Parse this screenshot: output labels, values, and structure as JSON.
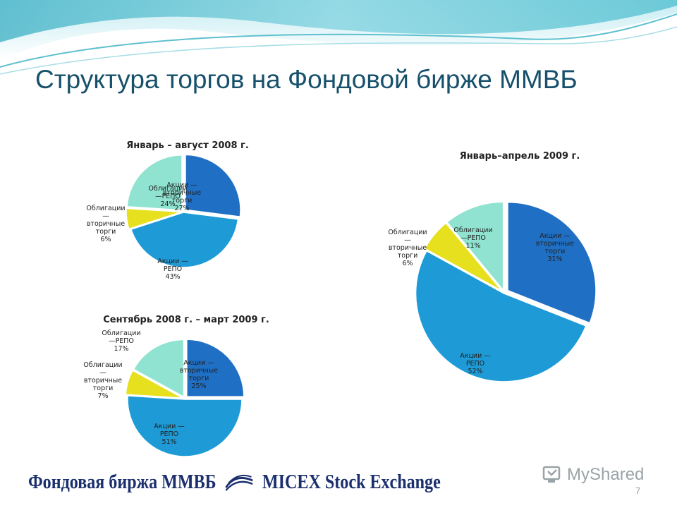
{
  "slide": {
    "title": "Структура торгов на Фондовой бирже ММВБ",
    "footer_brand_ru": "Фондовая биржа ММВБ",
    "footer_brand_en": "MICEX Stock Exchange",
    "watermark": "MyShared",
    "slide_number": "7"
  },
  "colors": {
    "title": "#17506b",
    "stocks_secondary": "#1f6fc4",
    "stocks_repo": "#1e9bd6",
    "bonds_secondary": "#e6e01f",
    "bonds_repo": "#8fe3d0"
  },
  "icons": [
    "micex-logo-icon",
    "myshared-icon"
  ],
  "chart_data": [
    {
      "type": "pie",
      "title": "Январь – август 2008 г.",
      "unit": "%",
      "slices": [
        {
          "name": "Акции — вторичные торги",
          "lines": [
            "Акции —",
            "вторичные",
            "торги",
            "27%"
          ],
          "value": 27,
          "color": "#1f6fc4"
        },
        {
          "name": "Акции — РЕПО",
          "lines": [
            "Акции —",
            "РЕПО",
            "43%"
          ],
          "value": 43,
          "color": "#1e9bd6"
        },
        {
          "name": "Облигации — вторичные торги",
          "lines": [
            "Облигации",
            "—",
            "вторичные",
            "торги",
            "6%"
          ],
          "value": 6,
          "color": "#e6e01f"
        },
        {
          "name": "Облигации — РЕПО",
          "lines": [
            "Облигации",
            "—РЕПО",
            "24%"
          ],
          "value": 24,
          "color": "#8fe3d0"
        }
      ]
    },
    {
      "type": "pie",
      "title": "Сентябрь 2008 г. – март 2009 г.",
      "unit": "%",
      "slices": [
        {
          "name": "Акции — вторичные торги",
          "lines": [
            "Акции —",
            "вторичные",
            "торги",
            "25%"
          ],
          "value": 25,
          "color": "#1f6fc4"
        },
        {
          "name": "Акции — РЕПО",
          "lines": [
            "Акции —",
            "РЕПО",
            "51%"
          ],
          "value": 51,
          "color": "#1e9bd6"
        },
        {
          "name": "Облигации — вторичные торги",
          "lines": [
            "Облигации",
            "—",
            "вторичные",
            "торги",
            "7%"
          ],
          "value": 7,
          "color": "#e6e01f"
        },
        {
          "name": "Облигации — РЕПО",
          "lines": [
            "Облигации",
            "—РЕПО",
            "17%"
          ],
          "value": 17,
          "color": "#8fe3d0"
        }
      ]
    },
    {
      "type": "pie",
      "title": "Январь–апрель 2009 г.",
      "unit": "%",
      "slices": [
        {
          "name": "Акции — вторичные торги",
          "lines": [
            "Акции —",
            "вторичные",
            "торги",
            "31%"
          ],
          "value": 31,
          "color": "#1f6fc4"
        },
        {
          "name": "Акции — РЕПО",
          "lines": [
            "Акции —",
            "РЕПО",
            "52%"
          ],
          "value": 52,
          "color": "#1e9bd6"
        },
        {
          "name": "Облигации — вторичные торги",
          "lines": [
            "Облигации",
            "—",
            "вторичные",
            "торги",
            "6%"
          ],
          "value": 6,
          "color": "#e6e01f"
        },
        {
          "name": "Облигации — РЕПО",
          "lines": [
            "Облигации",
            "—РЕПО",
            "11%"
          ],
          "value": 11,
          "color": "#8fe3d0"
        }
      ]
    }
  ]
}
